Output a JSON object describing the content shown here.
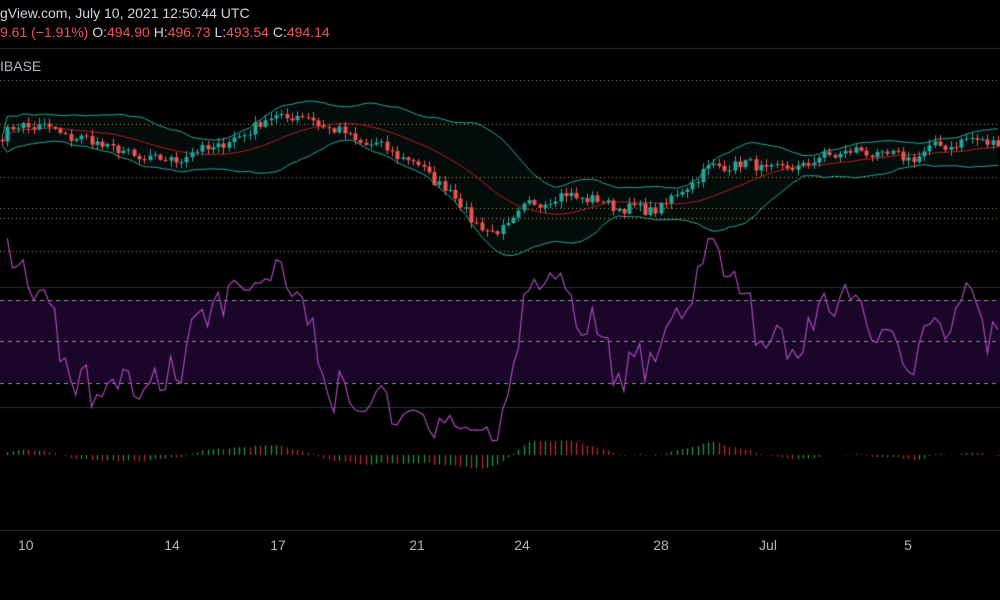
{
  "header": {
    "line1": "gView.com, July 10, 2021 12:50:44 UTC",
    "change": "9.61 (−1.91%)",
    "o_label": "O:",
    "o_value": "494.90",
    "h_label": "H:",
    "h_value": "496.73",
    "l_label": "L:",
    "l_value": "493.54",
    "c_label": "C:",
    "c_value": "494.14"
  },
  "exchange": "IBASE",
  "colors": {
    "background": "#000000",
    "up": "#26a69a",
    "down": "#ef5350",
    "bollinger": "#26a69a",
    "bollinger_basis": "#b71c1c",
    "rsi": "#ab47bc",
    "rsi_band": "#1a0628",
    "grid_dots": "#b89a2a",
    "text": "#b2b5be"
  },
  "chart_data": {
    "type": "candlestick",
    "x_tick_labels": [
      "10",
      "14",
      "17",
      "21",
      "24",
      "28",
      "Jul",
      "5"
    ],
    "panes": [
      "price_with_bollinger_bands",
      "rsi",
      "histogram"
    ],
    "price_path": [
      508,
      512,
      511,
      509,
      507,
      506,
      503,
      501,
      500,
      501,
      503,
      505,
      507,
      512,
      514,
      515,
      513,
      510,
      507,
      505,
      503,
      500,
      495,
      490,
      482,
      476,
      480,
      486,
      488,
      489,
      488,
      486,
      485,
      484,
      486,
      492,
      497,
      499,
      499,
      498,
      497,
      499,
      501,
      503,
      503,
      502,
      501,
      502,
      505,
      506,
      507,
      506
    ]
  }
}
